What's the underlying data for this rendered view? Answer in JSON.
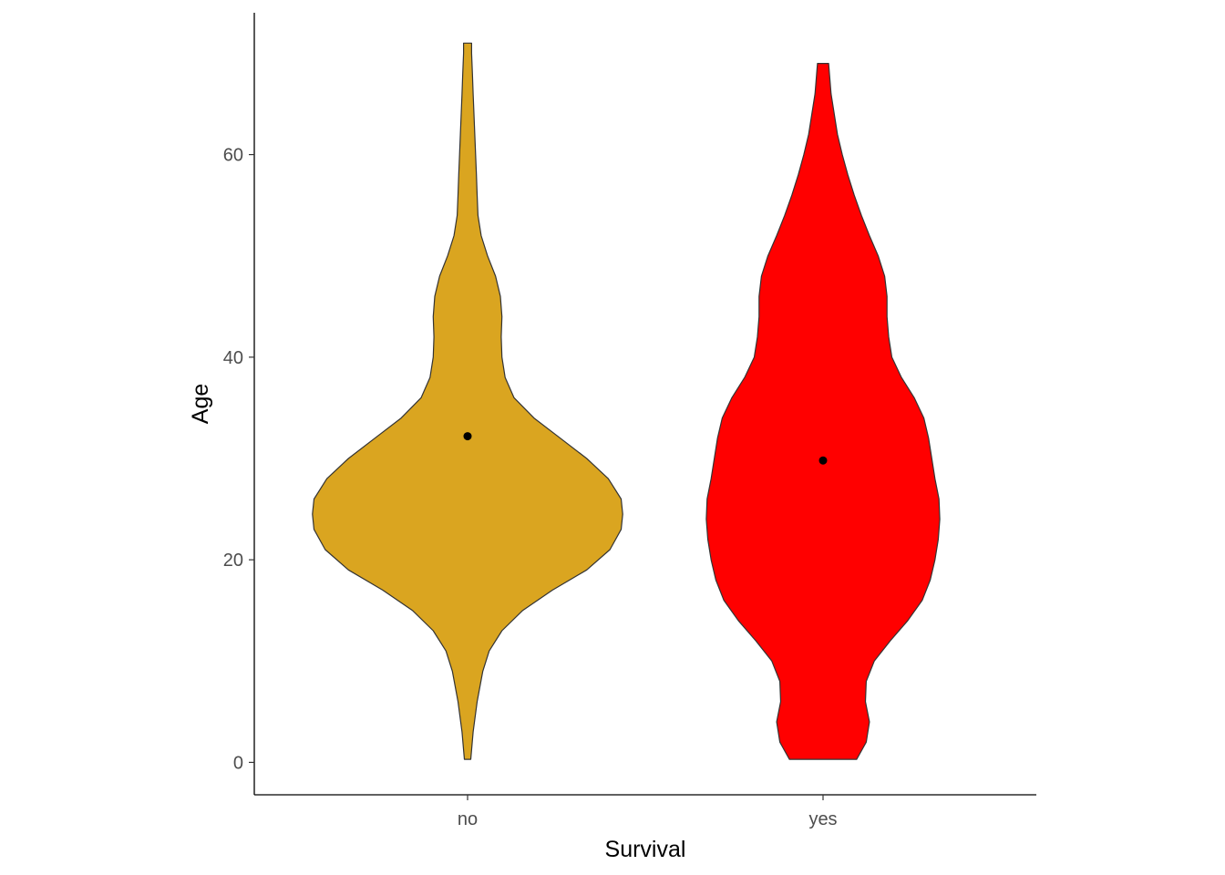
{
  "chart_data": {
    "type": "violin",
    "xlabel": "Survival",
    "ylabel": "Age",
    "categories": [
      "no",
      "yes"
    ],
    "ylim": [
      -3.2,
      74
    ],
    "yticks": [
      0,
      20,
      40,
      60
    ],
    "grid": false,
    "legend": "none",
    "series": [
      {
        "category": "no",
        "color": "#DAA520",
        "mean": 32.2,
        "range": [
          0.3,
          71
        ],
        "density": [
          [
            0.3,
            0.02
          ],
          [
            3,
            0.035
          ],
          [
            6,
            0.06
          ],
          [
            9,
            0.095
          ],
          [
            11,
            0.135
          ],
          [
            13,
            0.215
          ],
          [
            15,
            0.345
          ],
          [
            17,
            0.53
          ],
          [
            19,
            0.745
          ],
          [
            21,
            0.89
          ],
          [
            23,
            0.96
          ],
          [
            24.5,
            0.97
          ],
          [
            26,
            0.96
          ],
          [
            28,
            0.88
          ],
          [
            30,
            0.745
          ],
          [
            32,
            0.58
          ],
          [
            34,
            0.415
          ],
          [
            36,
            0.29
          ],
          [
            38,
            0.235
          ],
          [
            40,
            0.215
          ],
          [
            42,
            0.21
          ],
          [
            44,
            0.215
          ],
          [
            46,
            0.205
          ],
          [
            48,
            0.175
          ],
          [
            50,
            0.125
          ],
          [
            52,
            0.085
          ],
          [
            54,
            0.065
          ],
          [
            56,
            0.06
          ],
          [
            58,
            0.055
          ],
          [
            60,
            0.05
          ],
          [
            62,
            0.045
          ],
          [
            64,
            0.04
          ],
          [
            66,
            0.035
          ],
          [
            68,
            0.03
          ],
          [
            70,
            0.025
          ],
          [
            71,
            0.025
          ]
        ]
      },
      {
        "category": "yes",
        "color": "#FF0000",
        "mean": 29.8,
        "range": [
          0.3,
          69
        ],
        "density": [
          [
            0.3,
            0.21
          ],
          [
            2,
            0.27
          ],
          [
            4,
            0.29
          ],
          [
            6,
            0.265
          ],
          [
            8,
            0.27
          ],
          [
            10,
            0.32
          ],
          [
            12,
            0.42
          ],
          [
            14,
            0.53
          ],
          [
            16,
            0.62
          ],
          [
            18,
            0.67
          ],
          [
            20,
            0.7
          ],
          [
            22,
            0.72
          ],
          [
            24,
            0.73
          ],
          [
            26,
            0.725
          ],
          [
            28,
            0.7
          ],
          [
            30,
            0.68
          ],
          [
            32,
            0.66
          ],
          [
            34,
            0.63
          ],
          [
            36,
            0.57
          ],
          [
            38,
            0.49
          ],
          [
            40,
            0.43
          ],
          [
            42,
            0.41
          ],
          [
            44,
            0.4
          ],
          [
            46,
            0.4
          ],
          [
            48,
            0.385
          ],
          [
            50,
            0.345
          ],
          [
            52,
            0.29
          ],
          [
            54,
            0.24
          ],
          [
            56,
            0.195
          ],
          [
            58,
            0.155
          ],
          [
            60,
            0.12
          ],
          [
            62,
            0.09
          ],
          [
            64,
            0.07
          ],
          [
            66,
            0.05
          ],
          [
            68,
            0.04
          ],
          [
            69,
            0.035
          ]
        ]
      }
    ]
  }
}
